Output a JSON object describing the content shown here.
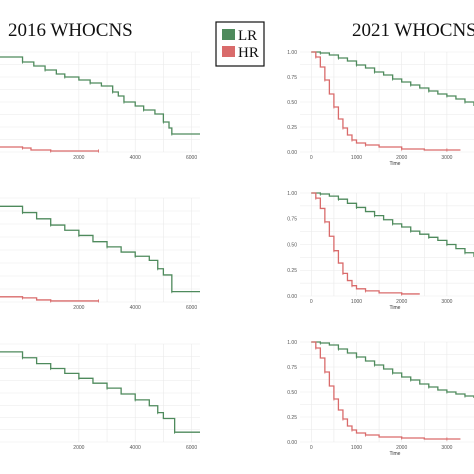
{
  "titles": {
    "left": "2016 WHOCNS",
    "right": "2021 WHOCNS"
  },
  "legend": {
    "items": [
      {
        "label": "LR",
        "color": "#4e8a5c"
      },
      {
        "label": "HR",
        "color": "#d96b6b"
      }
    ]
  },
  "chart_data": [
    {
      "type": "line",
      "panel": "2016-row1",
      "x_ticks": [
        "2000",
        "4000",
        "6000"
      ],
      "xlim": [
        -800,
        6300
      ],
      "ylim": [
        0,
        1
      ],
      "series": [
        {
          "name": "LR",
          "color": "#4e8a5c",
          "x": [
            -800,
            0,
            400,
            800,
            1200,
            1500,
            2000,
            2400,
            2800,
            3200,
            3400,
            3600,
            4000,
            4300,
            4700,
            5000,
            5200,
            5300,
            6300
          ],
          "y": [
            0.95,
            0.9,
            0.86,
            0.82,
            0.78,
            0.75,
            0.72,
            0.69,
            0.66,
            0.6,
            0.56,
            0.5,
            0.46,
            0.42,
            0.38,
            0.3,
            0.24,
            0.18,
            0.18
          ]
        },
        {
          "name": "HR",
          "color": "#d96b6b",
          "x": [
            -800,
            0,
            300,
            1000,
            1700,
            2700
          ],
          "y": [
            0.05,
            0.04,
            0.02,
            0.01,
            0.01,
            0.01
          ]
        }
      ]
    },
    {
      "type": "line",
      "panel": "2016-row2",
      "x_ticks": [
        "2000",
        "4000",
        "6000"
      ],
      "xlim": [
        -800,
        6300
      ],
      "ylim": [
        0,
        1
      ],
      "series": [
        {
          "name": "LR",
          "color": "#4e8a5c",
          "x": [
            -800,
            0,
            500,
            1000,
            1500,
            2000,
            2500,
            3000,
            3500,
            4000,
            4500,
            4800,
            5000,
            5300,
            6300
          ],
          "y": [
            0.92,
            0.86,
            0.8,
            0.74,
            0.69,
            0.64,
            0.58,
            0.53,
            0.48,
            0.44,
            0.4,
            0.32,
            0.26,
            0.1,
            0.1
          ]
        },
        {
          "name": "HR",
          "color": "#d96b6b",
          "x": [
            -800,
            0,
            500,
            1000,
            1700,
            2700
          ],
          "y": [
            0.05,
            0.04,
            0.02,
            0.01,
            0.01,
            0.01
          ]
        }
      ]
    },
    {
      "type": "line",
      "panel": "2016-row3",
      "x_ticks": [
        "2000",
        "4000",
        "6000"
      ],
      "xlim": [
        -800,
        6300
      ],
      "ylim": [
        0,
        1
      ],
      "series": [
        {
          "name": "LR",
          "color": "#4e8a5c",
          "x": [
            -800,
            0,
            500,
            1000,
            1500,
            2000,
            2500,
            3000,
            3500,
            4000,
            4500,
            4800,
            5000,
            5400,
            6300
          ],
          "y": [
            0.92,
            0.86,
            0.8,
            0.75,
            0.7,
            0.65,
            0.6,
            0.55,
            0.49,
            0.43,
            0.37,
            0.3,
            0.24,
            0.1,
            0.1
          ]
        }
      ]
    },
    {
      "type": "line",
      "panel": "2021-row1",
      "x_ticks": [
        "0",
        "1000",
        "2000",
        "3000"
      ],
      "y_ticks": [
        "1.00",
        "0.75",
        "0.50",
        "0.25",
        "0.00"
      ],
      "xlabel": "Time",
      "xlim": [
        -250,
        3600
      ],
      "ylim": [
        0,
        1
      ],
      "series": [
        {
          "name": "LR",
          "color": "#4e8a5c",
          "x": [
            0,
            200,
            400,
            600,
            800,
            1000,
            1200,
            1400,
            1600,
            1800,
            2000,
            2200,
            2400,
            2600,
            2800,
            3000,
            3200,
            3400,
            3600
          ],
          "y": [
            1.0,
            0.99,
            0.97,
            0.94,
            0.91,
            0.87,
            0.84,
            0.8,
            0.77,
            0.73,
            0.7,
            0.67,
            0.64,
            0.61,
            0.58,
            0.56,
            0.53,
            0.5,
            0.46
          ]
        },
        {
          "name": "HR",
          "color": "#d96b6b",
          "x": [
            0,
            100,
            200,
            300,
            400,
            500,
            600,
            700,
            800,
            900,
            1000,
            1200,
            1500,
            2000,
            2500,
            3000,
            3300
          ],
          "y": [
            1.0,
            0.95,
            0.85,
            0.72,
            0.58,
            0.45,
            0.33,
            0.24,
            0.17,
            0.12,
            0.09,
            0.07,
            0.05,
            0.03,
            0.02,
            0.02,
            0.02
          ]
        }
      ]
    },
    {
      "type": "line",
      "panel": "2021-row2",
      "x_ticks": [
        "0",
        "1000",
        "2000",
        "3000"
      ],
      "y_ticks": [
        "1.00",
        "0.75",
        "0.50",
        "0.25",
        "0.00"
      ],
      "xlabel": "Time",
      "xlim": [
        -250,
        3600
      ],
      "ylim": [
        0,
        1
      ],
      "series": [
        {
          "name": "LR",
          "color": "#4e8a5c",
          "x": [
            0,
            200,
            400,
            600,
            800,
            1000,
            1200,
            1400,
            1600,
            1800,
            2000,
            2200,
            2400,
            2600,
            2800,
            3000,
            3200,
            3400,
            3600
          ],
          "y": [
            1.0,
            0.99,
            0.97,
            0.94,
            0.9,
            0.86,
            0.82,
            0.78,
            0.74,
            0.7,
            0.67,
            0.63,
            0.6,
            0.57,
            0.54,
            0.5,
            0.46,
            0.42,
            0.38
          ]
        },
        {
          "name": "HR",
          "color": "#d96b6b",
          "x": [
            0,
            100,
            200,
            300,
            400,
            500,
            600,
            700,
            800,
            900,
            1000,
            1200,
            1500,
            2000,
            2400
          ],
          "y": [
            1.0,
            0.95,
            0.85,
            0.72,
            0.58,
            0.44,
            0.32,
            0.22,
            0.15,
            0.1,
            0.07,
            0.05,
            0.03,
            0.02,
            0.02
          ]
        }
      ]
    },
    {
      "type": "line",
      "panel": "2021-row3",
      "x_ticks": [
        "0",
        "1000",
        "2000",
        "3000"
      ],
      "y_ticks": [
        "1.00",
        "0.75",
        "0.50",
        "0.25",
        "0.00"
      ],
      "xlabel": "Time",
      "xlim": [
        -250,
        3600
      ],
      "ylim": [
        0,
        1
      ],
      "series": [
        {
          "name": "LR",
          "color": "#4e8a5c",
          "x": [
            0,
            200,
            400,
            600,
            800,
            1000,
            1200,
            1400,
            1600,
            1800,
            2000,
            2200,
            2400,
            2600,
            2800,
            3000,
            3200,
            3400,
            3600
          ],
          "y": [
            1.0,
            0.99,
            0.97,
            0.93,
            0.89,
            0.85,
            0.81,
            0.77,
            0.73,
            0.69,
            0.65,
            0.62,
            0.58,
            0.55,
            0.52,
            0.5,
            0.48,
            0.46,
            0.44
          ]
        },
        {
          "name": "HR",
          "color": "#d96b6b",
          "x": [
            0,
            100,
            200,
            300,
            400,
            500,
            600,
            700,
            800,
            900,
            1000,
            1200,
            1500,
            2000,
            2500,
            3000,
            3300
          ],
          "y": [
            1.0,
            0.94,
            0.84,
            0.7,
            0.56,
            0.43,
            0.32,
            0.23,
            0.16,
            0.12,
            0.09,
            0.07,
            0.05,
            0.04,
            0.03,
            0.03,
            0.03
          ]
        }
      ]
    }
  ]
}
